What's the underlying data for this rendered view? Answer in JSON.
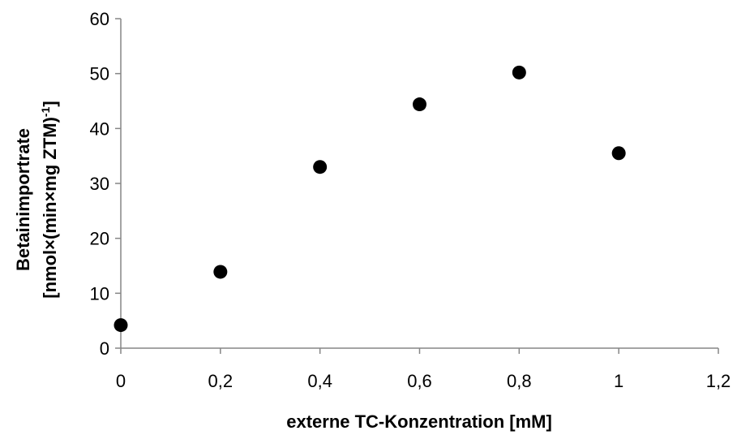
{
  "chart_data": {
    "type": "scatter",
    "xlabel": "externe TC-Konzentration [mM]",
    "ylabel_line1": "Betainimportrate",
    "ylabel_line2_main": "[nmol×(min×mg ZTM)",
    "ylabel_line2_sup": "-1",
    "ylabel_line2_close": "]",
    "xlim": [
      0,
      1.2
    ],
    "ylim": [
      0,
      60
    ],
    "x_ticks": [
      0,
      0.2,
      0.4,
      0.6,
      0.8,
      1.0,
      1.2
    ],
    "x_tick_labels": [
      "0",
      "0,2",
      "0,4",
      "0,6",
      "0,8",
      "1",
      "1,2"
    ],
    "y_ticks": [
      0,
      10,
      20,
      30,
      40,
      50,
      60
    ],
    "y_tick_labels": [
      "0",
      "10",
      "20",
      "30",
      "40",
      "50",
      "60"
    ],
    "grid": false,
    "legend": "none",
    "marker_color": "#000000",
    "axis_color": "#868686",
    "points": [
      {
        "x": 0.0,
        "y": 4.2
      },
      {
        "x": 0.2,
        "y": 13.9
      },
      {
        "x": 0.4,
        "y": 33.0
      },
      {
        "x": 0.6,
        "y": 44.4
      },
      {
        "x": 0.8,
        "y": 50.2
      },
      {
        "x": 1.0,
        "y": 35.5
      }
    ]
  }
}
